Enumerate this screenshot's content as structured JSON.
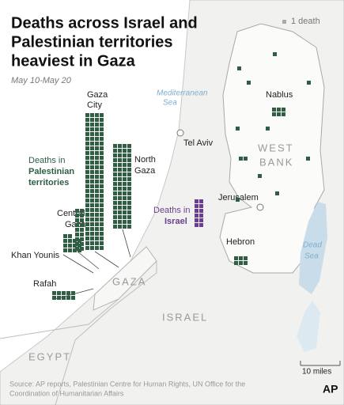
{
  "header": {
    "title_lines": [
      "Deaths across Israel and",
      "Palestinian territories",
      "heaviest in Gaza"
    ],
    "dates": "May 10-May 20"
  },
  "legend": {
    "count": 1,
    "label": "1 death"
  },
  "areas": {
    "gaza_city": {
      "label_lines": [
        "Gaza",
        "City"
      ],
      "count": 116
    },
    "north_gaza": {
      "label_lines": [
        "North",
        "Gaza"
      ],
      "count": 72
    },
    "central_gaza": {
      "label_lines": [
        "Central",
        "Gaza"
      ],
      "count": 18
    },
    "khan_younis": {
      "label": "Khan Younis",
      "count": 14
    },
    "rafah": {
      "label": "Rafah",
      "count": 10
    },
    "israel": {
      "label_lines": [
        "Deaths in",
        "Israel"
      ],
      "count": 12
    },
    "west_bank_counts": [
      1,
      1,
      1,
      6,
      1,
      1,
      2,
      1,
      1,
      1,
      1,
      1,
      6
    ]
  },
  "palestinian_label_lines": [
    "Deaths in",
    "Palestinian",
    "territories"
  ],
  "places": {
    "mediterranean": [
      "Mediterranean",
      "Sea"
    ],
    "tel_aviv": "Tel Aviv",
    "nablus": "Nablus",
    "west_bank": [
      "WEST",
      "BANK"
    ],
    "jerusalem": "Jerusalem",
    "hebron": "Hebron",
    "dead_sea": [
      "Dead",
      "Sea"
    ],
    "gaza": "GAZA",
    "israel": "ISRAEL",
    "egypt": "EGYPT"
  },
  "scale": "10 miles",
  "source": [
    "Source: AP reports, Palestinian Centre for Human Rights, UN Office for the",
    "Coordination of Humanitarian Affairs"
  ],
  "logo": "AP"
}
